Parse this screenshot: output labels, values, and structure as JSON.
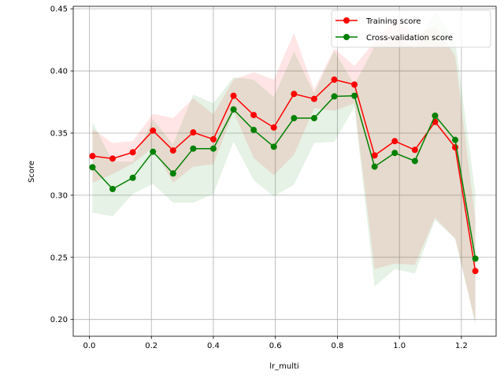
{
  "chart_data": {
    "type": "line",
    "xlabel": "lr_multi",
    "ylabel": "Score",
    "xlim": [
      -0.052,
      1.312
    ],
    "ylim": [
      0.1865,
      0.452
    ],
    "xticks": [
      0.0,
      0.2,
      0.4,
      0.6,
      0.8,
      1.0,
      1.2
    ],
    "xtick_labels": [
      "0.0",
      "0.2",
      "0.4",
      "0.6",
      "0.8",
      "1.0",
      "1.2"
    ],
    "yticks": [
      0.2,
      0.25,
      0.3,
      0.35,
      0.4,
      0.45
    ],
    "ytick_labels": [
      "0.20",
      "0.25",
      "0.30",
      "0.35",
      "0.40",
      "0.45"
    ],
    "grid": true,
    "legend_position": "top-right",
    "x": [
      0.01,
      0.075,
      0.14,
      0.205,
      0.27,
      0.335,
      0.4,
      0.465,
      0.53,
      0.595,
      0.66,
      0.725,
      0.79,
      0.855,
      0.92,
      0.985,
      1.05,
      1.115,
      1.18,
      1.245
    ],
    "series": [
      {
        "name": "Training score",
        "color": "#ff0000",
        "fill_color": "#ff0000",
        "values": [
          0.3315,
          0.3295,
          0.3345,
          0.352,
          0.336,
          0.3505,
          0.345,
          0.38,
          0.3645,
          0.3545,
          0.3815,
          0.3775,
          0.393,
          0.389,
          0.332,
          0.3435,
          0.3365,
          0.359,
          0.3385,
          0.239
        ],
        "upper": [
          0.3535,
          0.342,
          0.3435,
          0.3655,
          0.362,
          0.378,
          0.365,
          0.393,
          0.399,
          0.393,
          0.4305,
          0.385,
          0.418,
          0.404,
          0.4235,
          0.442,
          0.429,
          0.436,
          0.412,
          0.28
        ],
        "lower": [
          0.31,
          0.317,
          0.3255,
          0.3385,
          0.31,
          0.323,
          0.325,
          0.367,
          0.33,
          0.316,
          0.3325,
          0.37,
          0.368,
          0.374,
          0.2405,
          0.245,
          0.244,
          0.282,
          0.265,
          0.198
        ]
      },
      {
        "name": "Cross-validation score",
        "color": "#008000",
        "fill_color": "#008000",
        "values": [
          0.3225,
          0.305,
          0.314,
          0.335,
          0.3175,
          0.3375,
          0.3375,
          0.369,
          0.3525,
          0.339,
          0.362,
          0.362,
          0.3795,
          0.38,
          0.323,
          0.334,
          0.3275,
          0.364,
          0.3445,
          0.249
        ],
        "upper": [
          0.359,
          0.327,
          0.327,
          0.361,
          0.341,
          0.381,
          0.374,
          0.395,
          0.393,
          0.379,
          0.4155,
          0.382,
          0.416,
          0.389,
          0.4195,
          0.4275,
          0.418,
          0.448,
          0.424,
          0.302
        ],
        "lower": [
          0.286,
          0.283,
          0.301,
          0.309,
          0.294,
          0.294,
          0.301,
          0.343,
          0.312,
          0.299,
          0.3085,
          0.342,
          0.343,
          0.371,
          0.2265,
          0.2405,
          0.237,
          0.28,
          0.265,
          0.196
        ]
      }
    ]
  }
}
